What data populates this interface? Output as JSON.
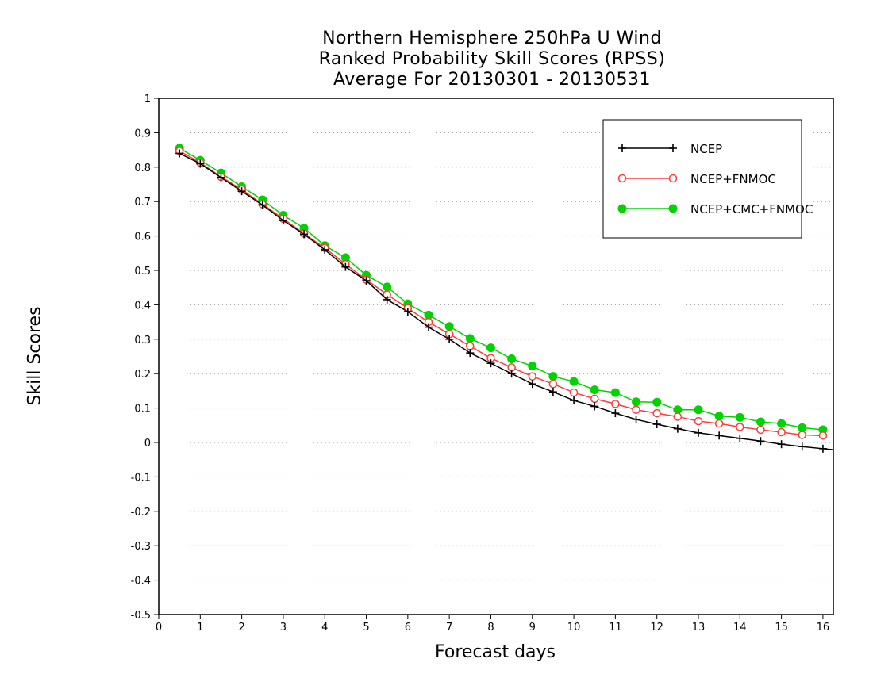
{
  "chart_data": {
    "type": "line",
    "title": [
      "Northern Hemisphere 250hPa U Wind",
      "Ranked Probability Skill Scores (RPSS)",
      "Average For 20130301 - 20130531"
    ],
    "xlabel": "Forecast days",
    "ylabel": "Skill Scores",
    "xlim": [
      0,
      16.25
    ],
    "ylim": [
      -0.5,
      1
    ],
    "xticks": [
      0,
      1,
      2,
      3,
      4,
      5,
      6,
      7,
      8,
      9,
      10,
      11,
      12,
      13,
      14,
      15,
      16
    ],
    "yticks": [
      -0.5,
      -0.4,
      -0.3,
      -0.2,
      -0.1,
      0,
      0.1,
      0.2,
      0.3,
      0.4,
      0.5,
      0.6,
      0.7,
      0.8,
      0.9,
      1
    ],
    "ytick_labels": [
      "-0.5",
      "-0.4",
      "-0.3",
      "-0.2",
      "-0.1",
      "0",
      "0.1",
      "0.2",
      "0.3",
      "0.4",
      "0.5",
      "0.6",
      "0.7",
      "0.8",
      "0.9",
      "1"
    ],
    "grid": "horizontal dotted",
    "legend_position": "top-right",
    "x": [
      0.5,
      1,
      1.5,
      2,
      2.5,
      3,
      3.5,
      4,
      4.5,
      5,
      5.5,
      6,
      6.5,
      7,
      7.5,
      8,
      8.5,
      9,
      9.5,
      10,
      10.5,
      11,
      11.5,
      12,
      12.5,
      13,
      13.5,
      14,
      14.5,
      15,
      15.5,
      16
    ],
    "series": [
      {
        "name": "NCEP",
        "color": "#000000",
        "marker": "plus",
        "values": [
          0.84,
          0.81,
          0.77,
          0.73,
          0.69,
          0.645,
          0.605,
          0.56,
          0.51,
          0.47,
          0.415,
          0.38,
          0.335,
          0.3,
          0.26,
          0.23,
          0.2,
          0.17,
          0.147,
          0.122,
          0.105,
          0.085,
          0.067,
          0.053,
          0.04,
          0.028,
          0.02,
          0.012,
          0.004,
          -0.005,
          -0.012,
          -0.018
        ]
      },
      {
        "name": "NCEP+FNMOC",
        "color": "#ff3b3b",
        "marker": "open-circle",
        "values": [
          0.847,
          0.813,
          0.772,
          0.735,
          0.692,
          0.65,
          0.607,
          0.565,
          0.518,
          0.473,
          0.43,
          0.39,
          0.35,
          0.315,
          0.28,
          0.245,
          0.218,
          0.192,
          0.17,
          0.145,
          0.127,
          0.112,
          0.095,
          0.085,
          0.075,
          0.062,
          0.055,
          0.045,
          0.037,
          0.03,
          0.022,
          0.02
        ]
      },
      {
        "name": "NCEP+CMC+FNMOC",
        "color": "#00d400",
        "marker": "filled-circle",
        "values": [
          0.855,
          0.82,
          0.783,
          0.743,
          0.705,
          0.66,
          0.623,
          0.572,
          0.537,
          0.486,
          0.452,
          0.403,
          0.37,
          0.337,
          0.302,
          0.275,
          0.243,
          0.222,
          0.192,
          0.177,
          0.153,
          0.145,
          0.118,
          0.117,
          0.095,
          0.095,
          0.077,
          0.073,
          0.06,
          0.055,
          0.043,
          0.037
        ]
      }
    ]
  }
}
